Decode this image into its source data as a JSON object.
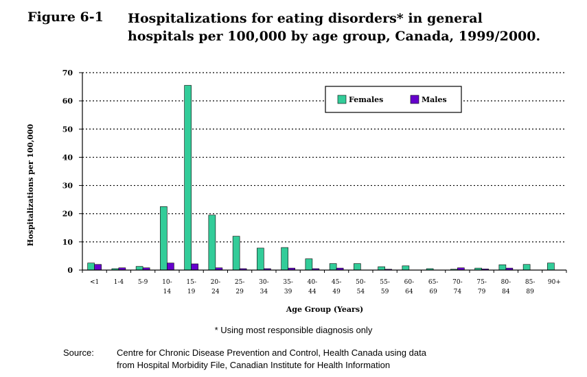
{
  "figure": {
    "label": "Figure 6-1",
    "title_lines": [
      "Hospitalizations for eating disorders* in general",
      "hospitals per 100,000 by age group, Canada, 1999/2000."
    ]
  },
  "footnote": "* Using most responsible diagnosis only",
  "source": {
    "label": "Source:",
    "lines": [
      "Centre for Chronic Disease Prevention and Control, Health Canada using data",
      "from Hospital Morbidity File, Canadian Institute for Health Information"
    ]
  },
  "chart_data": {
    "type": "bar",
    "categories": [
      [
        "<1"
      ],
      [
        "1-4"
      ],
      [
        "5-9"
      ],
      [
        "10-",
        "14"
      ],
      [
        "15-",
        "19"
      ],
      [
        "20-",
        "24"
      ],
      [
        "25-",
        "29"
      ],
      [
        "30-",
        "34"
      ],
      [
        "35-",
        "39"
      ],
      [
        "40-",
        "44"
      ],
      [
        "45-",
        "49"
      ],
      [
        "50-",
        "54"
      ],
      [
        "55-",
        "59"
      ],
      [
        "60-",
        "64"
      ],
      [
        "65-",
        "69"
      ],
      [
        "70-",
        "74"
      ],
      [
        "75-",
        "79"
      ],
      [
        "80-",
        "84"
      ],
      [
        "85-",
        "89"
      ],
      [
        "90+"
      ]
    ],
    "series": [
      {
        "name": "Females",
        "color": "#33cc99",
        "values": [
          2.5,
          0.5,
          1.3,
          22.5,
          65.5,
          19.5,
          12,
          7.8,
          8,
          4,
          2.3,
          2.3,
          1.2,
          1.5,
          0.5,
          0.3,
          0.7,
          1.9,
          2,
          2.5
        ]
      },
      {
        "name": "Males",
        "color": "#6600cc",
        "values": [
          2,
          0.8,
          0.8,
          2.5,
          2.2,
          0.8,
          0.5,
          0.5,
          0.7,
          0.5,
          0.7,
          0,
          0.3,
          0,
          0,
          0.8,
          0.4,
          0.7,
          0,
          0
        ]
      }
    ],
    "xlabel": "Age Group (Years)",
    "ylabel": "Hospitalizations per 100,000",
    "ylim": [
      0,
      70
    ],
    "yticks": [
      0,
      10,
      20,
      30,
      40,
      50,
      60,
      70
    ],
    "grid": "horizontal dotted",
    "legend_position": "top-right"
  }
}
